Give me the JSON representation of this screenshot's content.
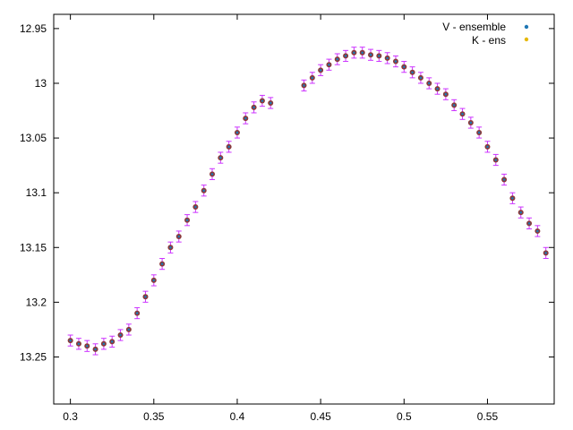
{
  "chart_data": {
    "type": "scatter",
    "title": "",
    "xlabel": "",
    "ylabel": "",
    "xlim": [
      0.29,
      0.59
    ],
    "ylim": [
      12.937,
      13.293
    ],
    "y_inverted": true,
    "x_ticks": [
      0.3,
      0.35,
      0.4,
      0.45,
      0.5,
      0.55
    ],
    "x_tick_labels": [
      "0.3",
      "0.35",
      "0.4",
      "0.45",
      "0.5",
      "0.55"
    ],
    "y_ticks": [
      12.95,
      13.0,
      13.05,
      13.1,
      13.15,
      13.2,
      13.25
    ],
    "y_tick_labels": [
      "12.95",
      "13",
      "13.05",
      "13.1",
      "13.15",
      "13.2",
      "13.25"
    ],
    "grid": false,
    "legend_position": "top-right",
    "series": [
      {
        "name": "V - ensemble",
        "color": "#1f77b4",
        "error_bar_color": "#cc33ff",
        "point_color": "#8b3a3a",
        "error": 0.005,
        "x": [
          0.3,
          0.305,
          0.31,
          0.315,
          0.32,
          0.325,
          0.33,
          0.335,
          0.34,
          0.345,
          0.35,
          0.355,
          0.36,
          0.365,
          0.37,
          0.375,
          0.38,
          0.385,
          0.39,
          0.395,
          0.4,
          0.405,
          0.41,
          0.415,
          0.42,
          0.44,
          0.445,
          0.45,
          0.455,
          0.46,
          0.465,
          0.47,
          0.475,
          0.48,
          0.485,
          0.49,
          0.495,
          0.5,
          0.505,
          0.51,
          0.515,
          0.52,
          0.525,
          0.53,
          0.535,
          0.54,
          0.545,
          0.55,
          0.555,
          0.56,
          0.565,
          0.57,
          0.575,
          0.58,
          0.585
        ],
        "y": [
          13.235,
          13.238,
          13.24,
          13.243,
          13.238,
          13.236,
          13.23,
          13.225,
          13.21,
          13.195,
          13.18,
          13.165,
          13.15,
          13.14,
          13.125,
          13.113,
          13.098,
          13.083,
          13.068,
          13.058,
          13.045,
          13.032,
          13.022,
          13.016,
          13.018,
          13.002,
          12.995,
          12.988,
          12.983,
          12.978,
          12.975,
          12.972,
          12.972,
          12.974,
          12.975,
          12.977,
          12.98,
          12.985,
          12.99,
          12.995,
          13.0,
          13.005,
          13.01,
          13.02,
          13.028,
          13.036,
          13.045,
          13.058,
          13.07,
          13.088,
          13.105,
          13.118,
          13.128,
          13.135,
          13.155
        ]
      },
      {
        "name": "K - ens",
        "color": "#e6b800",
        "x": [],
        "y": []
      }
    ]
  }
}
